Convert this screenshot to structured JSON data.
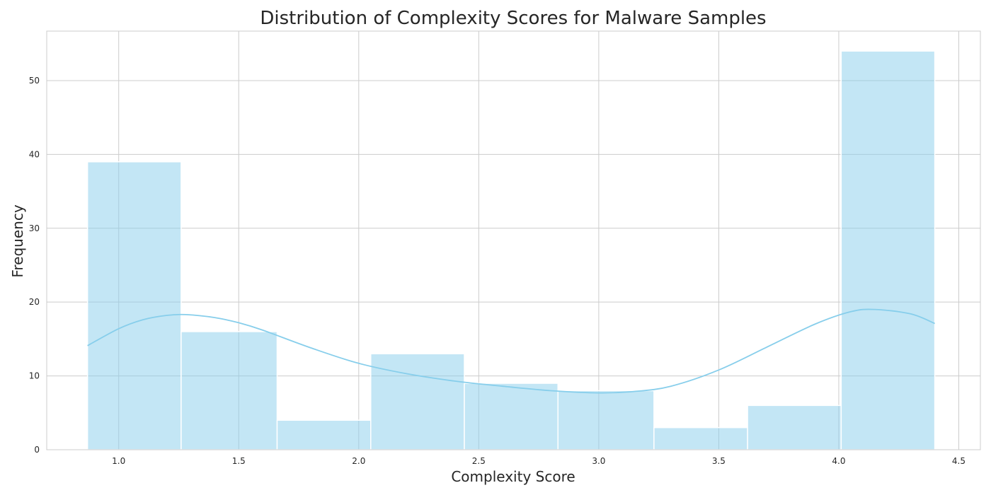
{
  "chart_data": {
    "type": "bar",
    "title": "Distribution of Complexity Scores for Malware Samples",
    "xlabel": "Complexity Score",
    "ylabel": "Frequency",
    "xlim": [
      0.7,
      4.59
    ],
    "ylim": [
      0,
      56.7
    ],
    "xticks": [
      "1.0",
      "1.5",
      "2.0",
      "2.5",
      "3.0",
      "3.5",
      "4.0",
      "4.5"
    ],
    "yticks": [
      "0",
      "10",
      "20",
      "30",
      "40",
      "50"
    ],
    "grid": true,
    "bins": [
      {
        "x0": 0.87,
        "x1": 1.26,
        "count": 39
      },
      {
        "x0": 1.26,
        "x1": 1.66,
        "count": 16
      },
      {
        "x0": 1.66,
        "x1": 2.05,
        "count": 4
      },
      {
        "x0": 2.05,
        "x1": 2.44,
        "count": 13
      },
      {
        "x0": 2.44,
        "x1": 2.83,
        "count": 9
      },
      {
        "x0": 2.83,
        "x1": 3.23,
        "count": 8
      },
      {
        "x0": 3.23,
        "x1": 3.62,
        "count": 3
      },
      {
        "x0": 3.62,
        "x1": 4.01,
        "count": 6
      },
      {
        "x0": 4.01,
        "x1": 4.4,
        "count": 54
      }
    ],
    "kde": {
      "x": [
        0.87,
        1.0,
        1.1,
        1.2,
        1.28,
        1.4,
        1.5,
        1.6,
        1.8,
        2.0,
        2.2,
        2.4,
        2.6,
        2.8,
        3.0,
        3.15,
        3.3,
        3.5,
        3.7,
        3.9,
        4.05,
        4.15,
        4.3,
        4.4
      ],
      "y": [
        14.1,
        16.4,
        17.6,
        18.2,
        18.3,
        17.9,
        17.2,
        16.2,
        13.8,
        11.7,
        10.3,
        9.3,
        8.6,
        8.0,
        7.7,
        7.9,
        8.6,
        10.8,
        13.9,
        17.0,
        18.7,
        19.0,
        18.4,
        17.1
      ]
    },
    "colors": {
      "bar_fill": "#87ceeb",
      "bar_opacity": 0.5,
      "kde_line": "#87ceeb"
    }
  }
}
